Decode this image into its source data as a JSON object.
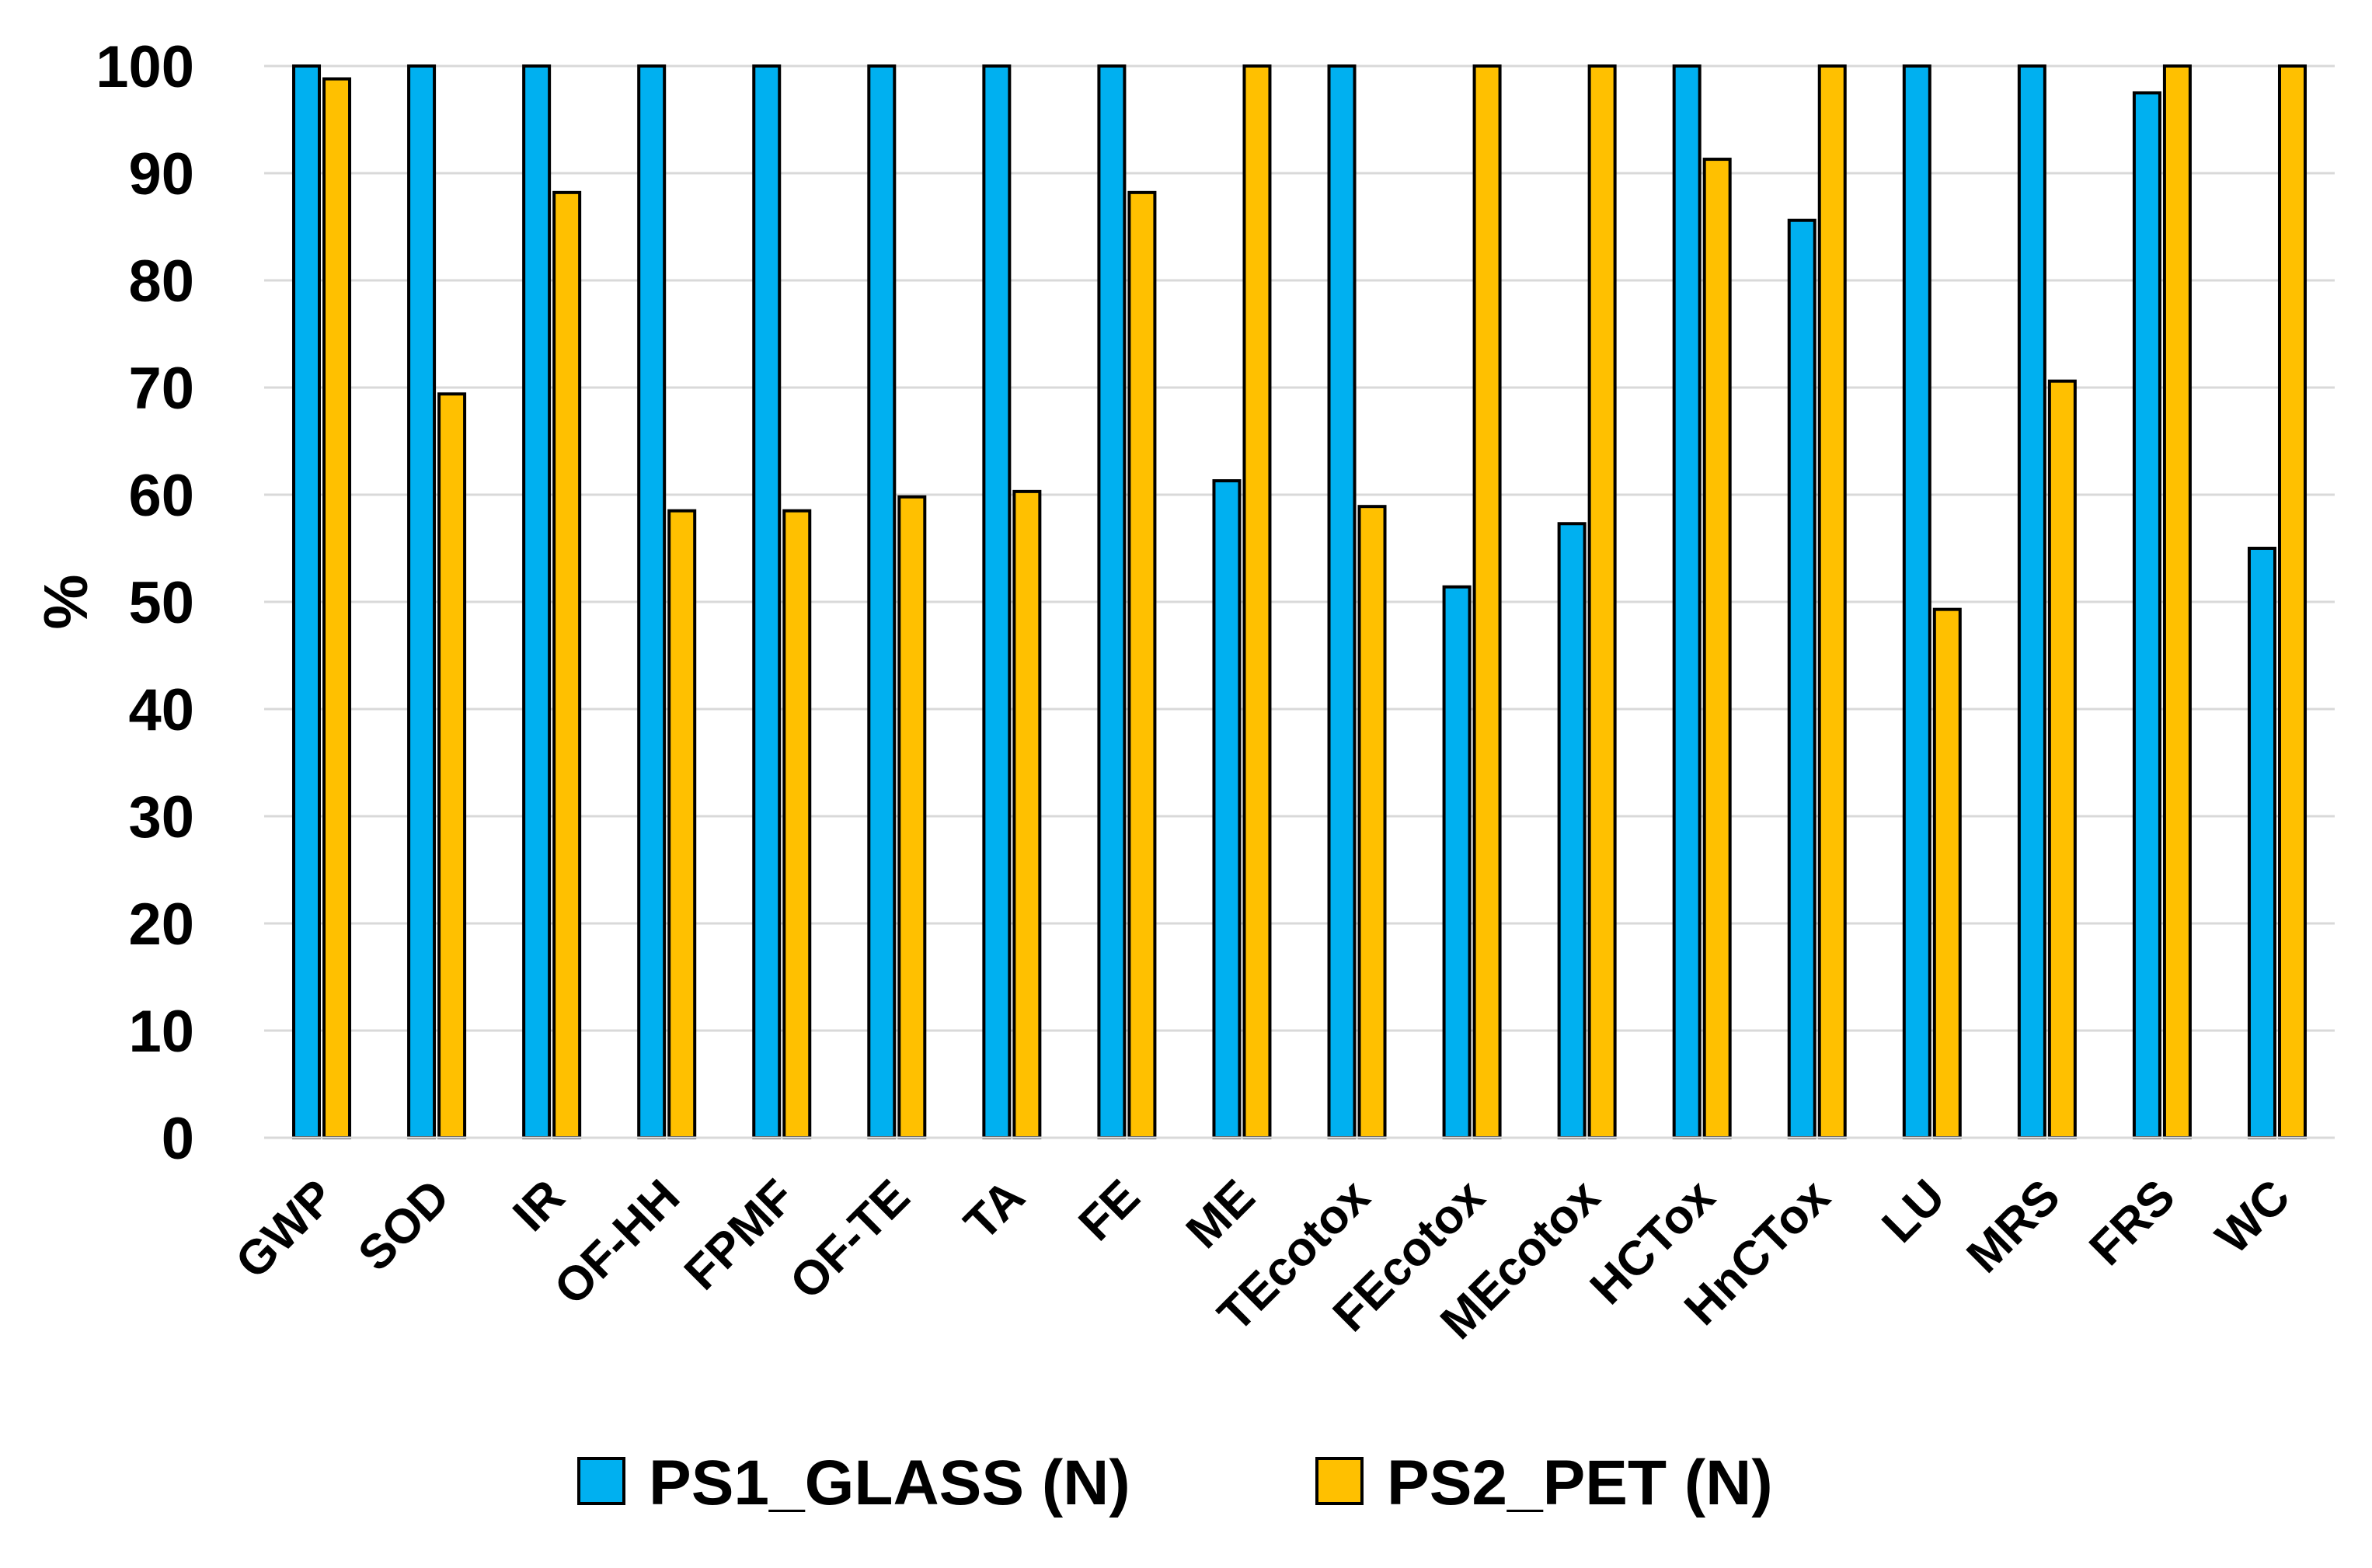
{
  "chart_data": {
    "type": "bar",
    "title": "",
    "xlabel": "",
    "ylabel": "%",
    "ylim": [
      0,
      100
    ],
    "yticks": [
      "0",
      "10",
      "20",
      "30",
      "40",
      "50",
      "60",
      "70",
      "80",
      "90",
      "100"
    ],
    "grid": true,
    "legend_position": "bottom",
    "categories": [
      "GWP",
      "SOD",
      "IR",
      "OF-HH",
      "FPMF",
      "OF-TE",
      "TA",
      "FE",
      "ME",
      "TEcotox",
      "FEcotox",
      "MEcotox",
      "HCTox",
      "HnCTox",
      "LU",
      "MRS",
      "FRS",
      "WC"
    ],
    "series": [
      {
        "name": "PS1_GLASS (N)",
        "color": "#00b0f0",
        "values": [
          100,
          100,
          100,
          100,
          100,
          100,
          100,
          100,
          61.3,
          100,
          51.4,
          57.3,
          100,
          85.6,
          100,
          100,
          97.5,
          55
        ]
      },
      {
        "name": "PS2_PET (N)",
        "color": "#ffc000",
        "values": [
          98.8,
          69.4,
          88.2,
          58.5,
          58.5,
          59.8,
          60.3,
          88.2,
          100,
          58.9,
          100,
          100,
          91.3,
          100,
          49.3,
          70.6,
          100,
          100
        ]
      }
    ]
  }
}
